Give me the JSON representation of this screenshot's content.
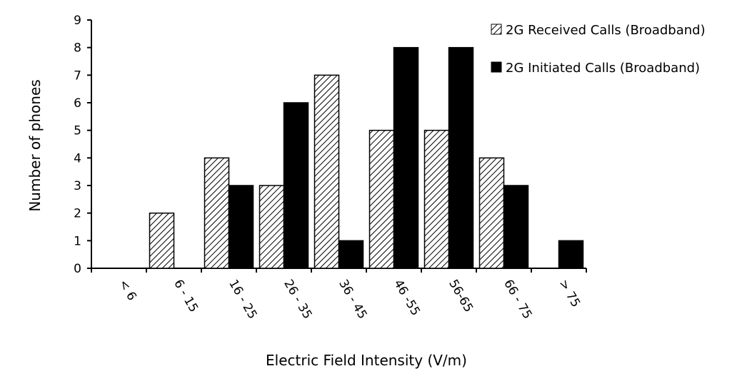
{
  "chart_data": {
    "type": "bar",
    "xlabel": "Electric Field Intensity (V/m)",
    "ylabel": "Number of phones",
    "categories": [
      "< 6",
      "6 - 15",
      "16 - 25",
      "26 - 35",
      "36 - 45",
      "46 -55",
      "56-65",
      "66 - 75",
      "> 75"
    ],
    "series": [
      {
        "name": "2G Received Calls (Broadband)",
        "values": [
          0,
          2,
          4,
          3,
          7,
          5,
          5,
          4,
          0
        ],
        "fill": "hatched"
      },
      {
        "name": "2G Initiated Calls (Broadband)",
        "values": [
          0,
          0,
          3,
          6,
          1,
          8,
          8,
          3,
          1
        ],
        "fill": "solid"
      }
    ],
    "ylim": [
      0,
      9
    ],
    "yticks": [
      "0",
      "1",
      "2",
      "3",
      "4",
      "5",
      "6",
      "7",
      "8",
      "9"
    ],
    "grid": false,
    "legend_position": "top-right",
    "colors": {
      "bar_outline": "#000000",
      "solid_fill": "#000000",
      "hatch": "#000000",
      "background": "#ffffff"
    }
  }
}
